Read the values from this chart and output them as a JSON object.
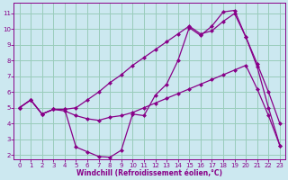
{
  "xlabel": "Windchill (Refroidissement éolien,°C)",
  "bg_color": "#cce8f0",
  "line_color": "#880088",
  "grid_color": "#99ccbb",
  "xlim": [
    -0.5,
    23.5
  ],
  "ylim": [
    1.7,
    11.7
  ],
  "xticks": [
    0,
    1,
    2,
    3,
    4,
    5,
    6,
    7,
    8,
    9,
    10,
    11,
    12,
    13,
    14,
    15,
    16,
    17,
    18,
    19,
    20,
    21,
    22,
    23
  ],
  "yticks": [
    2,
    3,
    4,
    5,
    6,
    7,
    8,
    9,
    10,
    11
  ],
  "line1_x": [
    0,
    1,
    2,
    3,
    4,
    5,
    6,
    7,
    8,
    9,
    10,
    11,
    12,
    13,
    14,
    15,
    16,
    17,
    18,
    19,
    20,
    21,
    22,
    23
  ],
  "line1_y": [
    5.0,
    5.5,
    4.6,
    4.9,
    4.9,
    2.5,
    2.2,
    1.9,
    1.85,
    2.3,
    4.6,
    4.5,
    5.8,
    6.5,
    8.0,
    10.1,
    9.6,
    10.2,
    11.1,
    11.2,
    9.5,
    7.6,
    5.0,
    2.6
  ],
  "line2_x": [
    0,
    1,
    2,
    3,
    4,
    5,
    6,
    7,
    8,
    9,
    10,
    11,
    12,
    13,
    14,
    15,
    16,
    17,
    18,
    19,
    20,
    21,
    22,
    23
  ],
  "line2_y": [
    5.0,
    5.5,
    4.6,
    4.9,
    4.8,
    4.5,
    4.3,
    4.2,
    4.4,
    4.5,
    4.7,
    5.0,
    5.3,
    5.6,
    5.9,
    6.2,
    6.5,
    6.8,
    7.1,
    7.4,
    7.7,
    6.2,
    4.5,
    2.6
  ],
  "line3_x": [
    0,
    1,
    2,
    3,
    4,
    5,
    6,
    7,
    8,
    9,
    10,
    11,
    12,
    13,
    14,
    15,
    16,
    17,
    18,
    19,
    20,
    21,
    22,
    23
  ],
  "line3_y": [
    5.0,
    5.5,
    4.6,
    4.9,
    4.9,
    5.0,
    5.5,
    6.0,
    6.6,
    7.1,
    7.7,
    8.2,
    8.7,
    9.2,
    9.7,
    10.2,
    9.7,
    9.9,
    10.5,
    11.0,
    9.5,
    7.8,
    6.0,
    4.0
  ],
  "marker": "D",
  "markersize": 2.5,
  "linewidth": 0.9,
  "tick_fontsize": 5.0,
  "xlabel_fontsize": 5.5
}
